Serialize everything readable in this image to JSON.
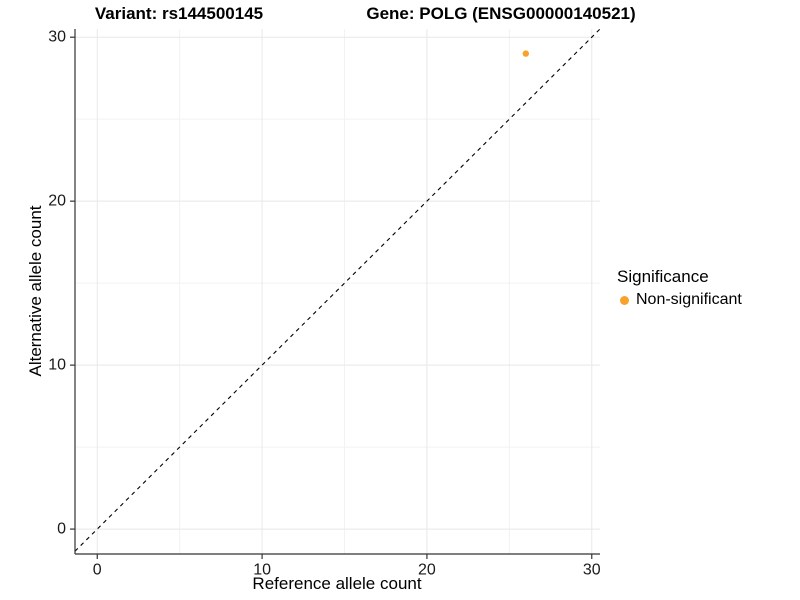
{
  "titles": {
    "variant": "Variant: rs144500145",
    "gene": "Gene: POLG (ENSG00000140521)"
  },
  "chart_data": {
    "type": "scatter",
    "title": "Variant: rs144500145 — Gene: POLG (ENSG00000140521)",
    "xlabel": "Reference allele count",
    "ylabel": "Alternative allele count",
    "xlim": [
      -1.35,
      30.5
    ],
    "ylim": [
      -1.52,
      30.5
    ],
    "xticks": [
      0,
      10,
      20,
      30
    ],
    "yticks": [
      0,
      10,
      20,
      30
    ],
    "x_minor_ticks": [
      5,
      15,
      25
    ],
    "y_minor_ticks": [
      5,
      15,
      25
    ],
    "grid": "major+minor",
    "legend_position": "right",
    "legend": {
      "title": "Significance",
      "entries": [
        {
          "label": "Non-significant",
          "color": "#F8A229"
        }
      ]
    },
    "series": [
      {
        "name": "Non-significant",
        "color": "#F8A229",
        "points": [
          {
            "x": 26,
            "y": 29
          }
        ]
      }
    ],
    "reference_line": {
      "type": "identity",
      "slope": 1,
      "intercept": 0,
      "style": "dashed",
      "color": "#000000"
    },
    "style": {
      "point_radius": 3.2,
      "axis_color": "#333333",
      "tick_color": "#333333",
      "tick_label_color": "#1a1a1a",
      "tick_label_size": 16,
      "grid_major_color": "#e8e8e8",
      "grid_minor_color": "#f2f2f2"
    }
  }
}
